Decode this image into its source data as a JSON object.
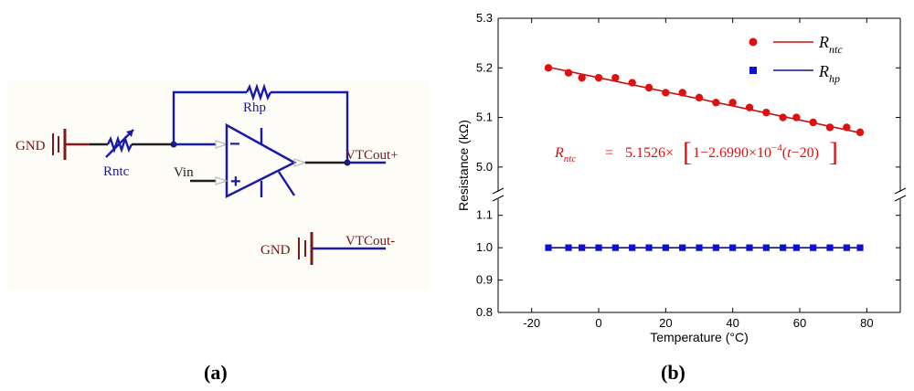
{
  "panel_a": {
    "label": "(a)",
    "gnd_top": "GND",
    "gnd_bottom": "GND",
    "rntc": "Rntc",
    "rhp": "Rhp",
    "vin": "Vin",
    "vtcout_plus": "VTCout+",
    "vtcout_minus": "VTCout-",
    "minus_sign": "−",
    "plus_sign": "+"
  },
  "panel_b": {
    "label": "(b)",
    "equation": {
      "lhs_main": "R",
      "lhs_sub": "ntc",
      "equals": "=",
      "coef": "5.1526×",
      "inner_one": "1−2.6990×10",
      "exponent": "−4",
      "paren_open": "(",
      "var_t": "t",
      "paren_close": "−20)"
    }
  },
  "chart_data": {
    "type": "scatter",
    "xlabel": "Temperature (°C)",
    "ylabel": "Resistance (kΩ)",
    "xlim": [
      -30,
      90
    ],
    "x_ticks": [
      -20,
      0,
      20,
      40,
      60,
      80
    ],
    "y_ticks_upper": [
      5.0,
      5.1,
      5.2,
      5.3
    ],
    "y_ticks_lower": [
      0.8,
      0.9,
      1.0,
      1.1
    ],
    "y_tick_labels_upper": [
      "5.0",
      "5.1",
      "5.2",
      "5.3"
    ],
    "y_tick_labels_lower": [
      "0.8",
      "0.9",
      "1.0",
      "1.1"
    ],
    "ylim_upper": [
      4.95,
      5.3
    ],
    "ylim_lower": [
      0.8,
      1.15
    ],
    "axis_break": true,
    "legend_position": "top-right",
    "series": [
      {
        "name_main": "R",
        "name_sub": "ntc",
        "color": "#e01010",
        "marker": "circle",
        "segment": "upper",
        "x": [
          -15,
          -9,
          -5,
          0,
          5,
          10,
          15,
          20,
          25,
          30,
          35,
          40,
          45,
          50,
          55,
          59,
          64,
          69,
          74,
          78
        ],
        "y": [
          5.2,
          5.19,
          5.18,
          5.18,
          5.18,
          5.17,
          5.16,
          5.15,
          5.15,
          5.14,
          5.13,
          5.13,
          5.12,
          5.11,
          5.1,
          5.1,
          5.09,
          5.08,
          5.08,
          5.07
        ],
        "fit": {
          "x": [
            -15,
            78
          ],
          "y": [
            5.2015,
            5.0692
          ]
        }
      },
      {
        "name_main": "R",
        "name_sub": "hp",
        "color": "#1010d0",
        "marker": "square",
        "segment": "lower",
        "x": [
          -15,
          -9,
          -5,
          0,
          5,
          10,
          15,
          20,
          25,
          30,
          35,
          40,
          45,
          50,
          55,
          59,
          64,
          69,
          74,
          78
        ],
        "y": [
          1.0,
          1.0,
          1.0,
          1.0,
          1.0,
          1.0,
          1.0,
          1.0,
          1.0,
          1.0,
          1.0,
          1.0,
          1.0,
          1.0,
          1.0,
          1.0,
          1.0,
          1.0,
          1.0,
          1.0
        ],
        "fit": {
          "x": [
            -15,
            78
          ],
          "y": [
            1.0,
            1.0
          ]
        }
      }
    ]
  }
}
